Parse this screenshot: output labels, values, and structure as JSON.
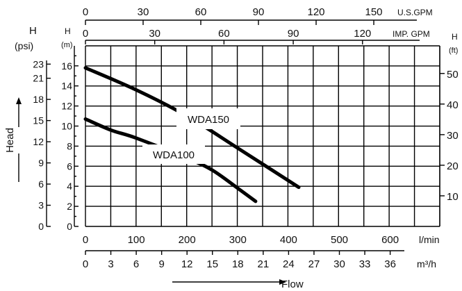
{
  "chart_data": {
    "type": "line",
    "x_unit": "l/min",
    "xlim": [
      0,
      700
    ],
    "ylim_m": [
      0,
      17
    ],
    "series": [
      {
        "name": "WDA150",
        "x": [
          0,
          100,
          200,
          300,
          420
        ],
        "y": [
          15.8,
          13.6,
          11.0,
          7.8,
          3.9
        ]
      },
      {
        "name": "WDA100",
        "x": [
          0,
          50,
          100,
          200,
          250,
          300,
          335
        ],
        "y": [
          10.7,
          9.6,
          8.8,
          6.8,
          5.6,
          3.8,
          2.5
        ]
      }
    ],
    "axes": {
      "head_title": "Head",
      "flow_title": "Flow",
      "psi": {
        "title": "H",
        "unit": "(psi)",
        "ticks": [
          "0",
          "3",
          "6",
          "9",
          "12",
          "15",
          "18",
          "21",
          "23"
        ]
      },
      "meters": {
        "title": "H",
        "unit": "(m)",
        "ticks": [
          "0",
          "2",
          "4",
          "6",
          "8",
          "10",
          "12",
          "14",
          "16"
        ]
      },
      "feet": {
        "title": "H",
        "unit": "(ft)",
        "ticks": [
          "10",
          "20",
          "30",
          "40",
          "50"
        ]
      },
      "lmin": {
        "unit": "l/min",
        "ticks": [
          "0",
          "100",
          "200",
          "300",
          "400",
          "500",
          "600"
        ]
      },
      "m3h": {
        "unit": "m³/h",
        "ticks": [
          "0",
          "3",
          "6",
          "9",
          "12",
          "15",
          "18",
          "21",
          "24",
          "27",
          "30",
          "33",
          "36"
        ]
      },
      "usgpm": {
        "unit": "U.S.GPM",
        "ticks": [
          "0",
          "30",
          "60",
          "90",
          "120",
          "150"
        ]
      },
      "impgpm": {
        "unit": "IMP. GPM",
        "ticks": [
          "0",
          "30",
          "60",
          "90",
          "120"
        ]
      }
    }
  }
}
